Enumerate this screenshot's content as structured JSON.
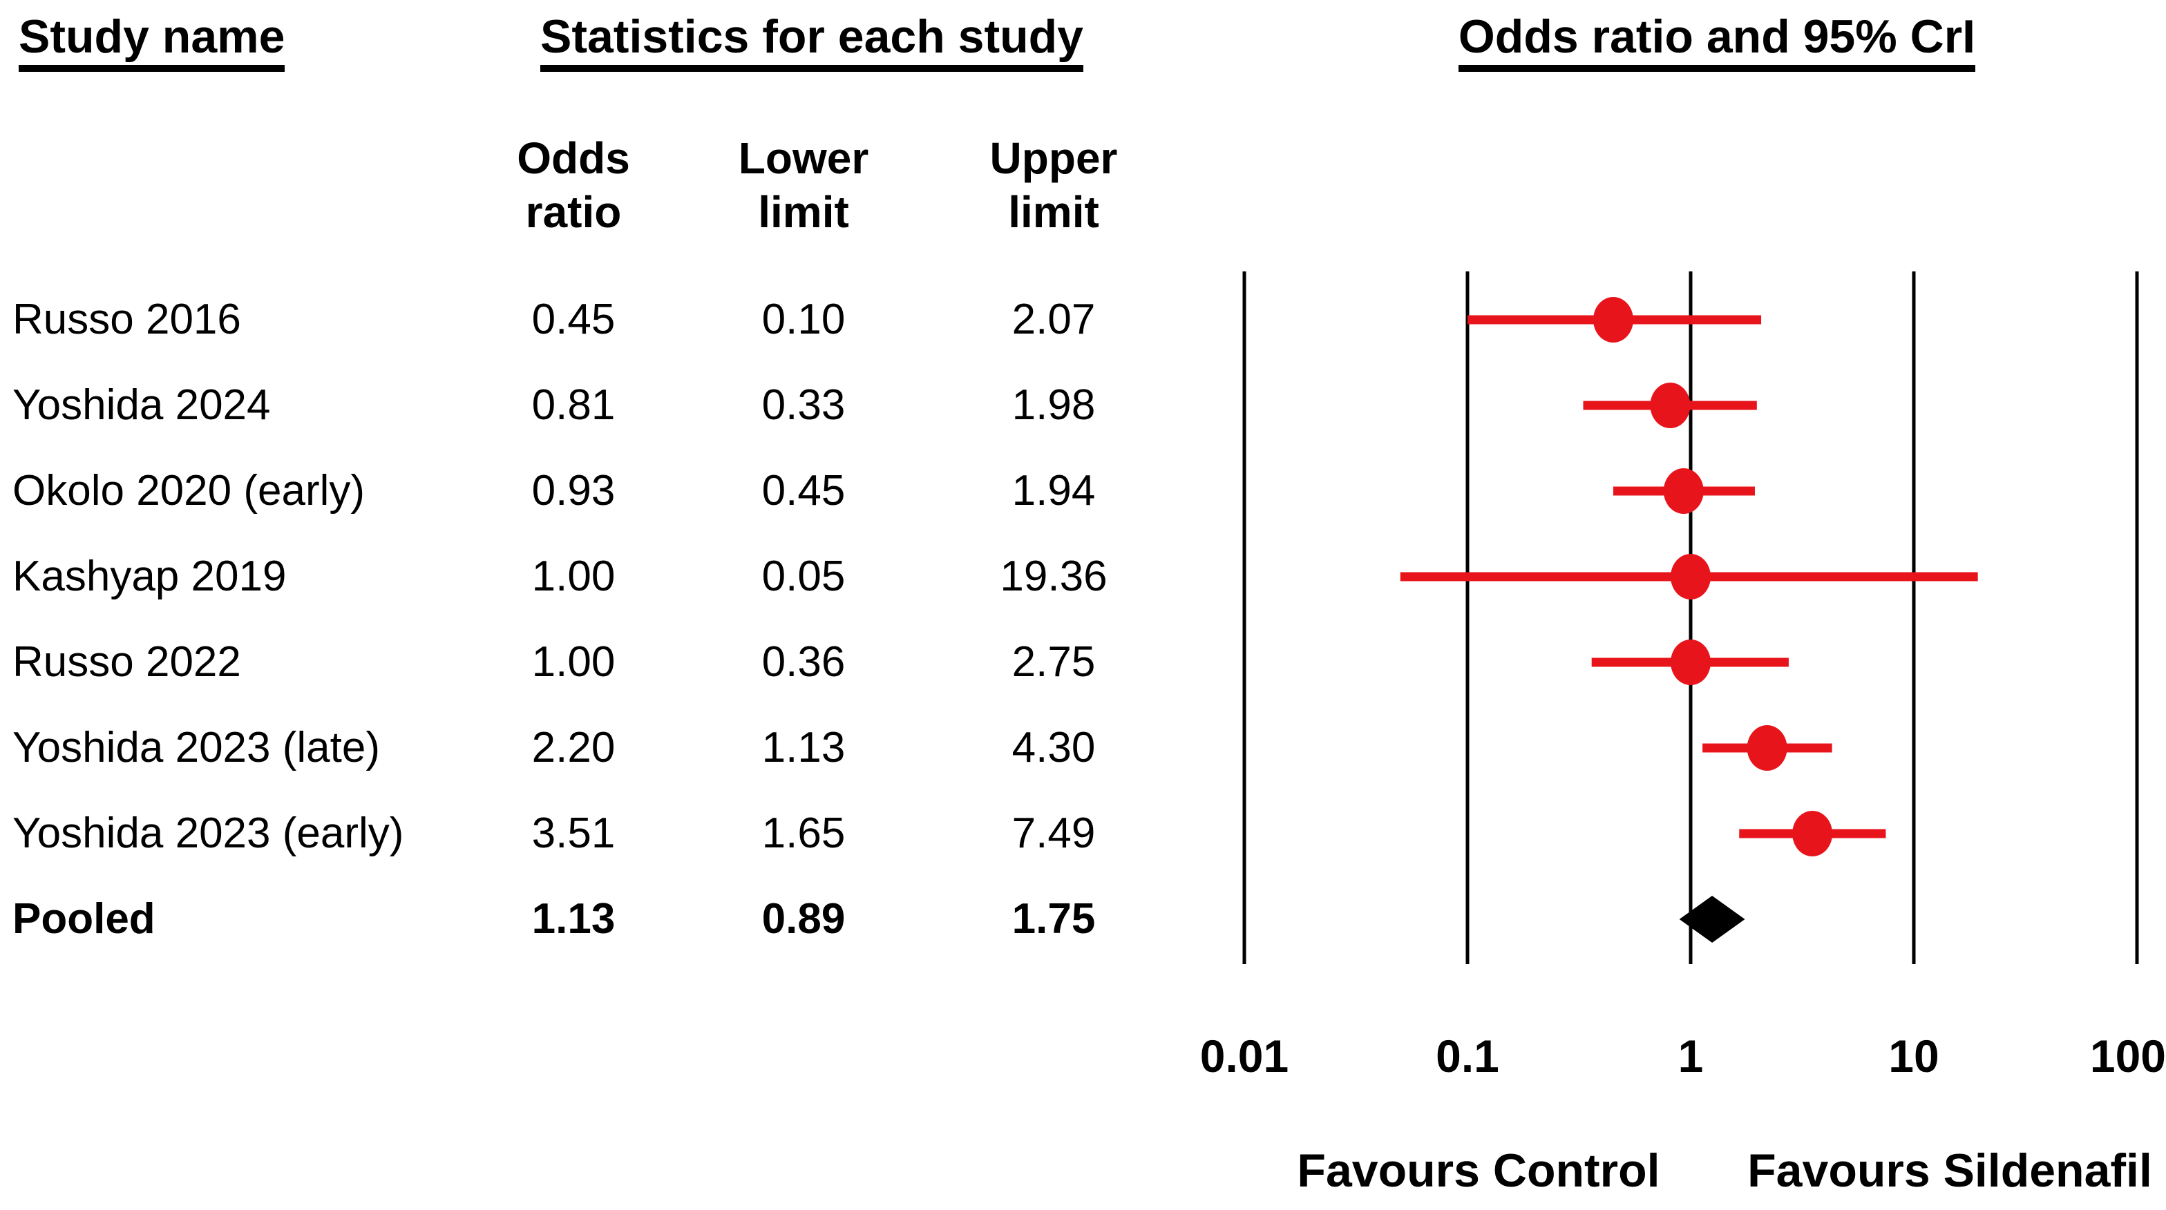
{
  "headers": {
    "study": "Study name",
    "stats": "Statistics for each study",
    "plot": "Odds ratio and 95% CrI"
  },
  "columns": [
    {
      "line1": "Odds",
      "line2": "ratio"
    },
    {
      "line1": "Lower",
      "line2": "limit"
    },
    {
      "line1": "Upper",
      "line2": "limit"
    }
  ],
  "rows": [
    {
      "name": "Russo 2016",
      "odds_ratio": "0.45",
      "lower": "0.10",
      "upper": "2.07",
      "pooled": false
    },
    {
      "name": "Yoshida 2024",
      "odds_ratio": "0.81",
      "lower": "0.33",
      "upper": "1.98",
      "pooled": false
    },
    {
      "name": "Okolo 2020 (early)",
      "odds_ratio": "0.93",
      "lower": "0.45",
      "upper": "1.94",
      "pooled": false
    },
    {
      "name": "Kashyap 2019",
      "odds_ratio": "1.00",
      "lower": "0.05",
      "upper": "19.36",
      "pooled": false
    },
    {
      "name": "Russo 2022",
      "odds_ratio": "1.00",
      "lower": "0.36",
      "upper": "2.75",
      "pooled": false
    },
    {
      "name": "Yoshida 2023 (late)",
      "odds_ratio": "2.20",
      "lower": "1.13",
      "upper": "4.30",
      "pooled": false
    },
    {
      "name": "Yoshida 2023 (early)",
      "odds_ratio": "3.51",
      "lower": "1.65",
      "upper": "7.49",
      "pooled": false
    },
    {
      "name": "Pooled",
      "odds_ratio": "1.13",
      "lower": "0.89",
      "upper": "1.75",
      "pooled": true
    }
  ],
  "axis": {
    "tick_labels": [
      "0.01",
      "0.1",
      "1",
      "10",
      "100"
    ],
    "favours_left": "Favours Control",
    "favours_right": "Favours Sildenafil"
  },
  "colors": {
    "marker_red": "#e8141b",
    "diamond_black": "#000000",
    "axis_black": "#000000"
  },
  "chart_data": {
    "type": "forest",
    "title": "Odds ratio and 95% CrI",
    "x_scale": "log10",
    "xlim": [
      0.01,
      100
    ],
    "x_ticks": [
      0.01,
      0.1,
      1,
      10,
      100
    ],
    "grid": "vertical-lines-at-decades",
    "legend_position": "none",
    "studies": [
      {
        "label": "Russo 2016",
        "or": 0.45,
        "lower": 0.1,
        "upper": 2.07
      },
      {
        "label": "Yoshida 2024",
        "or": 0.81,
        "lower": 0.33,
        "upper": 1.98
      },
      {
        "label": "Okolo 2020 (early)",
        "or": 0.93,
        "lower": 0.45,
        "upper": 1.94
      },
      {
        "label": "Kashyap 2019",
        "or": 1.0,
        "lower": 0.05,
        "upper": 19.36
      },
      {
        "label": "Russo 2022",
        "or": 1.0,
        "lower": 0.36,
        "upper": 2.75
      },
      {
        "label": "Yoshida 2023 (late)",
        "or": 2.2,
        "lower": 1.13,
        "upper": 4.3
      },
      {
        "label": "Yoshida 2023 (early)",
        "or": 3.51,
        "lower": 1.65,
        "upper": 7.49
      }
    ],
    "pooled": {
      "label": "Pooled",
      "or": 1.13,
      "lower": 0.89,
      "upper": 1.75
    },
    "favours": {
      "left": "Favours Control",
      "right": "Favours Sildenafil"
    },
    "marker_color": "#e8141b",
    "pooled_diamond_color": "#000000"
  }
}
